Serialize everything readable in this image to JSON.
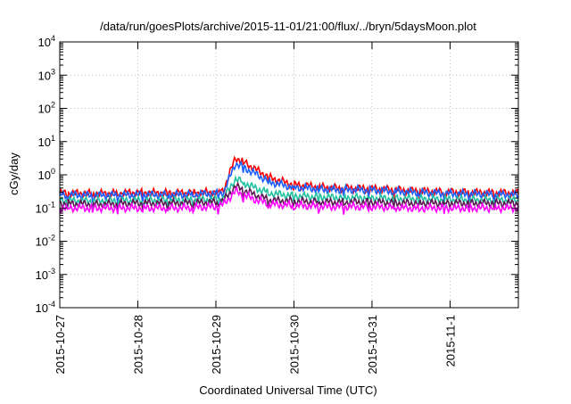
{
  "chart_data": {
    "type": "line",
    "title": "/data/run/goesPlots/archive/2015-11-01/21:00/flux/../bryn/5daysMoon.plot",
    "xlabel": "Coordinated Universal Time (UTC)",
    "ylabel": "cGy/day",
    "yscale": "log",
    "ylim": [
      0.0001,
      10000
    ],
    "xlim": [
      "2015-10-27",
      "2015-11-01T21:00"
    ],
    "grid": true,
    "legend": "none",
    "xticks": [
      "2015-10-27",
      "2015-10-28",
      "2015-10-29",
      "2015-10-30",
      "2015-10-31",
      "2015-11-1"
    ],
    "yticks": [
      {
        "value": 0.0001,
        "base": "10",
        "exp": "-4"
      },
      {
        "value": 0.001,
        "base": "10",
        "exp": "-3"
      },
      {
        "value": 0.01,
        "base": "10",
        "exp": "-2"
      },
      {
        "value": 0.1,
        "base": "10",
        "exp": "-1"
      },
      {
        "value": 1,
        "base": "10",
        "exp": "0"
      },
      {
        "value": 10,
        "base": "10",
        "exp": "1"
      },
      {
        "value": 100,
        "base": "10",
        "exp": "2"
      },
      {
        "value": 1000,
        "base": "10",
        "exp": "3"
      },
      {
        "value": 10000,
        "base": "10",
        "exp": "4"
      }
    ],
    "x_days": [
      0,
      0.5,
      1.0,
      1.5,
      2.0,
      2.1,
      2.25,
      2.35,
      2.5,
      2.7,
      3.0,
      3.5,
      4.0,
      4.5,
      5.0,
      5.875
    ],
    "series": [
      {
        "color": "#ff0000",
        "values": [
          0.28,
          0.27,
          0.29,
          0.28,
          0.3,
          0.35,
          3.3,
          2.5,
          1.5,
          0.8,
          0.5,
          0.4,
          0.38,
          0.33,
          0.3,
          0.28
        ]
      },
      {
        "color": "#1a5fff",
        "values": [
          0.25,
          0.24,
          0.25,
          0.25,
          0.27,
          0.3,
          2.2,
          1.7,
          1.1,
          0.6,
          0.42,
          0.36,
          0.35,
          0.3,
          0.27,
          0.25
        ]
      },
      {
        "color": "#20c0a0",
        "values": [
          0.17,
          0.16,
          0.17,
          0.17,
          0.18,
          0.2,
          0.75,
          0.6,
          0.4,
          0.28,
          0.23,
          0.21,
          0.2,
          0.19,
          0.18,
          0.17
        ]
      },
      {
        "color": "#5a1a50",
        "values": [
          0.14,
          0.13,
          0.14,
          0.14,
          0.15,
          0.17,
          0.45,
          0.35,
          0.25,
          0.17,
          0.16,
          0.15,
          0.15,
          0.14,
          0.14,
          0.14
        ]
      },
      {
        "color": "#ff00ff",
        "values": [
          0.1,
          0.1,
          0.1,
          0.1,
          0.11,
          0.13,
          0.32,
          0.25,
          0.18,
          0.13,
          0.12,
          0.11,
          0.11,
          0.1,
          0.1,
          0.1
        ]
      }
    ]
  }
}
